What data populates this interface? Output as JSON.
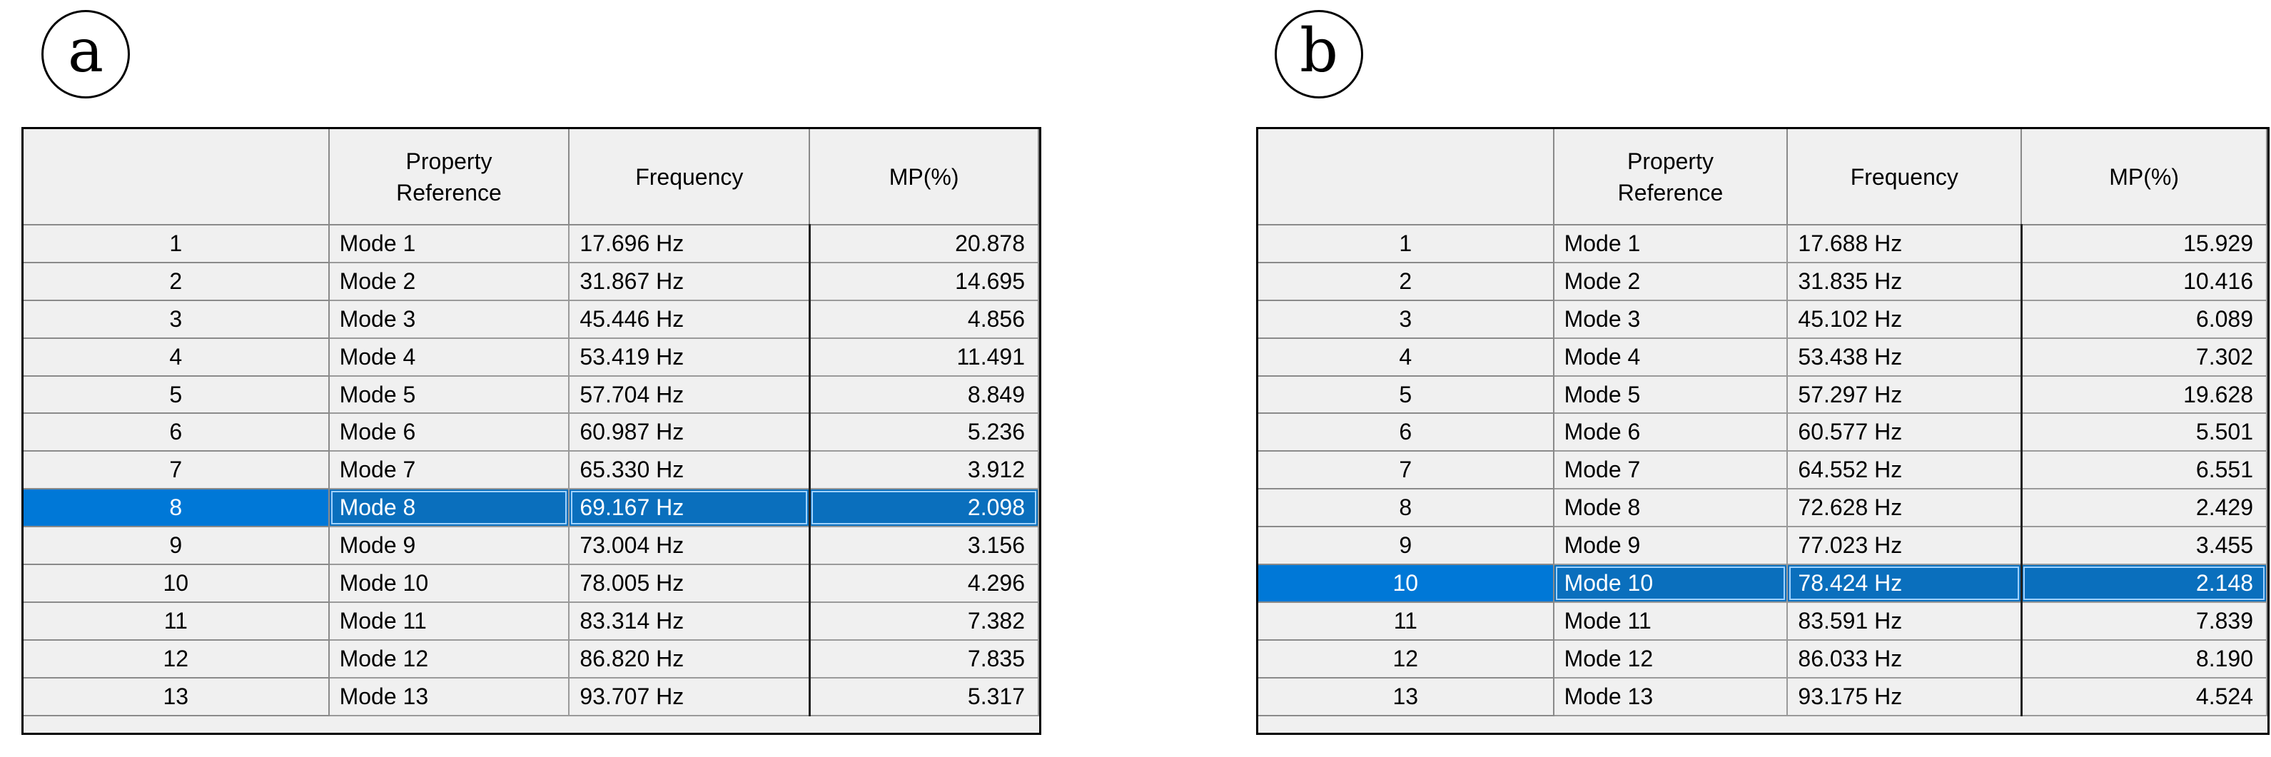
{
  "panels": [
    {
      "letter": "a",
      "columns": [
        "",
        "Property\nReference",
        "Frequency",
        "MP(%)"
      ],
      "selected_row": 8,
      "rows": [
        {
          "n": "1",
          "ref": "Mode 1",
          "freq": "17.696 Hz",
          "mp": "20.878"
        },
        {
          "n": "2",
          "ref": "Mode 2",
          "freq": "31.867 Hz",
          "mp": "14.695"
        },
        {
          "n": "3",
          "ref": "Mode 3",
          "freq": "45.446 Hz",
          "mp": "4.856"
        },
        {
          "n": "4",
          "ref": "Mode 4",
          "freq": "53.419 Hz",
          "mp": "11.491"
        },
        {
          "n": "5",
          "ref": "Mode 5",
          "freq": "57.704 Hz",
          "mp": "8.849"
        },
        {
          "n": "6",
          "ref": "Mode 6",
          "freq": "60.987 Hz",
          "mp": "5.236"
        },
        {
          "n": "7",
          "ref": "Mode 7",
          "freq": "65.330 Hz",
          "mp": "3.912"
        },
        {
          "n": "8",
          "ref": "Mode 8",
          "freq": "69.167 Hz",
          "mp": "2.098"
        },
        {
          "n": "9",
          "ref": "Mode 9",
          "freq": "73.004 Hz",
          "mp": "3.156"
        },
        {
          "n": "10",
          "ref": "Mode 10",
          "freq": "78.005 Hz",
          "mp": "4.296"
        },
        {
          "n": "11",
          "ref": "Mode 11",
          "freq": "83.314 Hz",
          "mp": "7.382"
        },
        {
          "n": "12",
          "ref": "Mode 12",
          "freq": "86.820 Hz",
          "mp": "7.835"
        },
        {
          "n": "13",
          "ref": "Mode 13",
          "freq": "93.707 Hz",
          "mp": "5.317"
        }
      ]
    },
    {
      "letter": "b",
      "columns": [
        "",
        "Property\nReference",
        "Frequency",
        "MP(%)"
      ],
      "selected_row": 10,
      "rows": [
        {
          "n": "1",
          "ref": "Mode 1",
          "freq": "17.688 Hz",
          "mp": "15.929"
        },
        {
          "n": "2",
          "ref": "Mode 2",
          "freq": "31.835 Hz",
          "mp": "10.416"
        },
        {
          "n": "3",
          "ref": "Mode 3",
          "freq": "45.102 Hz",
          "mp": "6.089"
        },
        {
          "n": "4",
          "ref": "Mode 4",
          "freq": "53.438 Hz",
          "mp": "7.302"
        },
        {
          "n": "5",
          "ref": "Mode 5",
          "freq": "57.297 Hz",
          "mp": "19.628"
        },
        {
          "n": "6",
          "ref": "Mode 6",
          "freq": "60.577 Hz",
          "mp": "5.501"
        },
        {
          "n": "7",
          "ref": "Mode 7",
          "freq": "64.552 Hz",
          "mp": "6.551"
        },
        {
          "n": "8",
          "ref": "Mode 8",
          "freq": "72.628 Hz",
          "mp": "2.429"
        },
        {
          "n": "9",
          "ref": "Mode 9",
          "freq": "77.023 Hz",
          "mp": "3.455"
        },
        {
          "n": "10",
          "ref": "Mode 10",
          "freq": "78.424 Hz",
          "mp": "2.148"
        },
        {
          "n": "11",
          "ref": "Mode 11",
          "freq": "83.591 Hz",
          "mp": "7.839"
        },
        {
          "n": "12",
          "ref": "Mode 12",
          "freq": "86.033 Hz",
          "mp": "8.190"
        },
        {
          "n": "13",
          "ref": "Mode 13",
          "freq": "93.175 Hz",
          "mp": "4.524"
        }
      ]
    }
  ],
  "colors": {
    "selection": "#0078d7",
    "grid_background": "#f0f0f0"
  }
}
